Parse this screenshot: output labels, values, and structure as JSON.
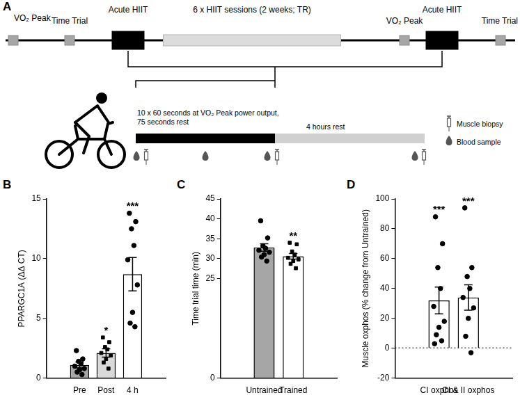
{
  "panel_a": {
    "label": "A",
    "timeline": [
      {
        "text": "VO₂ Peak",
        "kind": "test"
      },
      {
        "text": "Time Trial",
        "kind": "test"
      },
      {
        "text": "Acute HIIT",
        "kind": "acute"
      },
      {
        "text": "6 x HIIT sessions (2 weeks; TR)",
        "kind": "training"
      },
      {
        "text": "VO₂ Peak",
        "kind": "test"
      },
      {
        "text": "Acute HIIT",
        "kind": "acute"
      },
      {
        "text": "Time Trial",
        "kind": "test"
      }
    ],
    "protocol": {
      "work": "10 x 60 seconds at VO₂ Peak power output, 75 seconds rest",
      "rest": "4 hours rest"
    },
    "legend": [
      {
        "icon": "biopsy",
        "text": "Muscle biopsy"
      },
      {
        "icon": "blood",
        "text": "Blood sample"
      }
    ]
  },
  "chart_data": [
    {
      "panel_label": "B",
      "type": "bar",
      "ylabel": "PPARGC1A (ΔΔ CT)",
      "categories": [
        "Pre",
        "Post",
        "4 h"
      ],
      "values": [
        1.1,
        2.1,
        8.7
      ],
      "errors": [
        0.25,
        0.35,
        1.4
      ],
      "colors": [
        "#a6a6a6",
        "#d9d9d9",
        "#ffffff"
      ],
      "points": [
        {
          "marker": "circle",
          "color": "#000000",
          "values": [
            2.3,
            1.6,
            1.4,
            1.2,
            1.0,
            0.8,
            0.7,
            0.5,
            0.3
          ]
        },
        {
          "marker": "square",
          "color": "#000000",
          "values": [
            3.4,
            3.0,
            2.6,
            2.4,
            2.1,
            1.9,
            1.6,
            1.3,
            0.8
          ]
        },
        {
          "marker": "circle",
          "color": "#000000",
          "values": [
            13.8,
            13.1,
            12.5,
            11.1,
            9.9,
            7.8,
            5.5,
            4.6,
            4.3
          ]
        }
      ],
      "significance": [
        null,
        "*",
        "***"
      ],
      "ylim": [
        0,
        15
      ],
      "yticks": [
        0,
        5,
        10,
        15
      ],
      "grid": false
    },
    {
      "panel_label": "C",
      "type": "bar",
      "ylabel": "Time trial time (min)",
      "categories": [
        "Untrained",
        "Trained"
      ],
      "values": [
        32.8,
        30.6
      ],
      "errors": [
        0.95,
        0.7
      ],
      "colors": [
        "#a6a6a6",
        "#ffffff"
      ],
      "points": [
        {
          "marker": "circle",
          "color": "#000000",
          "values": [
            39.5,
            35.2,
            33.2,
            32.6,
            32.1,
            31.6,
            31.0,
            30.4,
            29.4
          ]
        },
        {
          "marker": "square",
          "color": "#000000",
          "values": [
            34.0,
            33.6,
            31.8,
            31.0,
            30.2,
            29.8,
            29.4,
            28.7,
            27.6
          ]
        }
      ],
      "significance": [
        null,
        "**"
      ],
      "ylim": [
        0,
        45
      ],
      "yticks": [
        0,
        25,
        30,
        35,
        40,
        45
      ],
      "grid": false
    },
    {
      "panel_label": "D",
      "type": "bar",
      "ylabel": "Muscle oxphos (% change from Untrained)",
      "categories": [
        "CI oxphos",
        "CI & II oxphos"
      ],
      "values": [
        32,
        34
      ],
      "errors": [
        9,
        8.5
      ],
      "colors": [
        "#ffffff",
        "#ffffff"
      ],
      "points": [
        {
          "marker": "circle",
          "color": "#000000",
          "values": [
            88,
            70,
            54,
            40,
            28,
            18,
            14,
            9,
            5,
            3
          ]
        },
        {
          "marker": "circle",
          "color": "#000000",
          "values": [
            94,
            54,
            48,
            40,
            34,
            27,
            20,
            8,
            -3
          ]
        }
      ],
      "significance": [
        "***",
        "***"
      ],
      "ylim": [
        -20,
        100
      ],
      "yticks": [
        -20,
        0,
        20,
        40,
        60,
        80,
        100
      ],
      "grid": false
    }
  ]
}
